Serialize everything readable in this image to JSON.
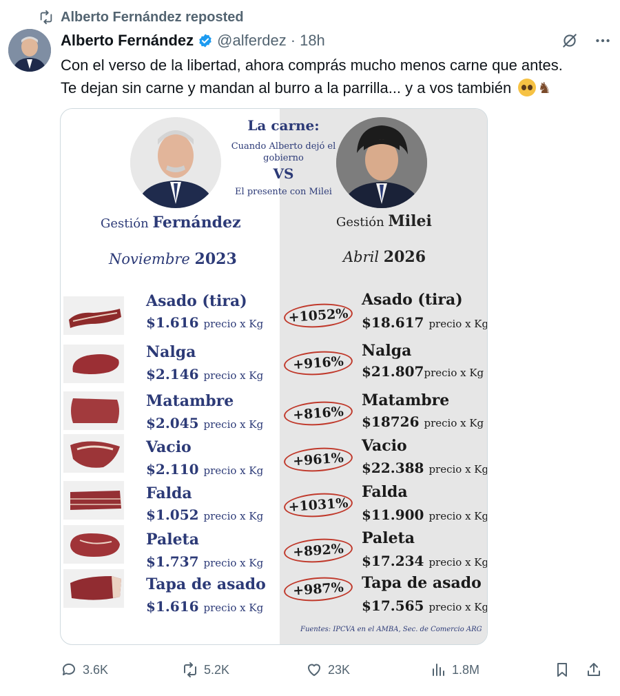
{
  "repost": {
    "label": "Alberto Fernández reposted"
  },
  "tweet": {
    "author": "Alberto Fernández",
    "handle": "@alferdez",
    "separator": "·",
    "time": "18h",
    "text_line1": "Con el verso de la libertad, ahora comprás mucho menos carne que antes.",
    "text_line2": "Te dejan sin carne y mandan al burro a la parrilla... y a vos también"
  },
  "infographic": {
    "title": "La carne:",
    "subtitle1": "Cuando Alberto dejó el gobierno",
    "vs": "VS",
    "subtitle2": "El presente con Milei",
    "left_prefix": "Gestión",
    "left_name": "Fernández",
    "right_prefix": "Gestión",
    "right_name": "Milei",
    "left_month": "Noviembre",
    "left_year": "2023",
    "right_month": "Abril",
    "right_year": "2026",
    "unit": "precio x Kg",
    "sources": "Fuentes: IPCVA en el AMBA, Sec. de Comercio ARG",
    "rows": [
      {
        "cut": "Asado (tira)",
        "old": "$1.616",
        "pct": "+1052%",
        "new": "$18.617"
      },
      {
        "cut": "Nalga",
        "old": "$2.146",
        "pct": "+916%",
        "new": "$21.807"
      },
      {
        "cut": "Matambre",
        "old": "$2.045",
        "pct": "+816%",
        "new": "$18726"
      },
      {
        "cut": "Vacio",
        "old": "$2.110",
        "pct": "+961%",
        "new": "$22.388"
      },
      {
        "cut": "Falda",
        "old": "$1.052",
        "pct": "+1031%",
        "new": "$11.900"
      },
      {
        "cut": "Paleta",
        "old": "$1.737",
        "pct": "+892%",
        "new": "$17.234"
      },
      {
        "cut": "Tapa de asado",
        "old": "$1.616",
        "pct": "+987%",
        "new": "$17.565"
      }
    ]
  },
  "actions": {
    "replies": "3.6K",
    "reposts": "5.2K",
    "likes": "23K",
    "views": "1.8M"
  },
  "colors": {
    "navy": "#2c3a77",
    "circle_red": "#c0392b",
    "verified_blue": "#1d9bf0",
    "muted": "#536471"
  },
  "icons": {
    "repost": "repost-icon",
    "verified": "verified-badge-icon",
    "grok": "grok-icon",
    "more": "more-icon",
    "reply": "reply-icon",
    "like": "heart-icon",
    "views": "views-icon",
    "bookmark": "bookmark-icon",
    "share": "share-icon"
  }
}
